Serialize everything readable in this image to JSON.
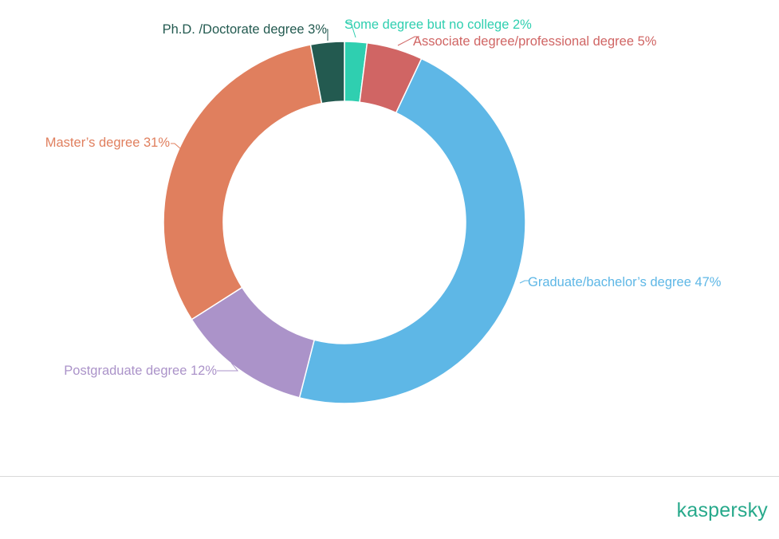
{
  "chart_data": {
    "type": "pie",
    "donut": true,
    "slices": [
      {
        "label": "Some degree but no college 2%",
        "value": 2,
        "color": "#2fcfb0"
      },
      {
        "label": "Associate degree/professional degree 5%",
        "value": 5,
        "color": "#d06564"
      },
      {
        "label": "Graduate/bachelor’s degree 47%",
        "value": 47,
        "color": "#5eb7e6"
      },
      {
        "label": "Postgraduate degree 12%",
        "value": 12,
        "color": "#ab93c9"
      },
      {
        "label": "Master’s degree 31%",
        "value": 31,
        "color": "#e07f5e"
      },
      {
        "label": "Ph.D. /Doctorate degree 3%",
        "value": 3,
        "color": "#235a50"
      }
    ],
    "start": "top",
    "direction": "clockwise"
  },
  "brand": {
    "name": "kaspersky",
    "color": "#27a98b"
  }
}
